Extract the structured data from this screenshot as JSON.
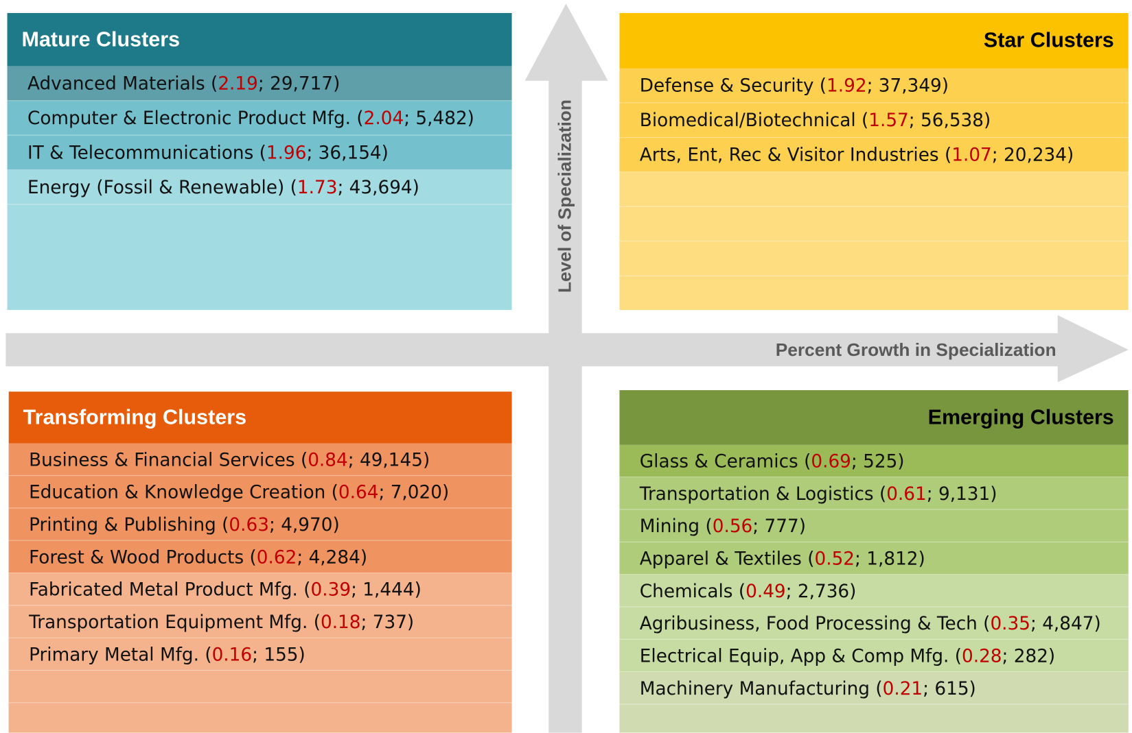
{
  "vertical_axis_label": "Level of Specialization",
  "horizontal_axis_label": "Percent Growth in Specialization",
  "mature": {
    "title": "Mature Clusters",
    "items": [
      {
        "before": "Advanced Materials (",
        "value": "2.19",
        "after": "; 29,717)"
      },
      {
        "before": "Computer & Electronic Product Mfg. (",
        "value": "2.04",
        "after": "; 5,482)"
      },
      {
        "before": "IT & Telecommunications (",
        "value": "1.96",
        "after": "; 36,154)"
      },
      {
        "before": "Energy (Fossil & Renewable) (",
        "value": "1.73",
        "after": "; 43,694)"
      }
    ]
  },
  "star": {
    "title": "Star Clusters",
    "items": [
      {
        "before": "Defense & Security (",
        "value": "1.92",
        "after": "; 37,349)"
      },
      {
        "before": "Biomedical/Biotechnical (",
        "value": "1.57",
        "after": "; 56,538)"
      },
      {
        "before": "Arts, Ent, Rec & Visitor Industries (",
        "value": "1.07",
        "after": "; 20,234)"
      }
    ]
  },
  "transforming": {
    "title": "Transforming Clusters",
    "items": [
      {
        "before": "Business & Financial Services (",
        "value": "0.84",
        "after": "; 49,145)"
      },
      {
        "before": "Education & Knowledge Creation (",
        "value": "0.64",
        "after": "; 7,020)"
      },
      {
        "before": "Printing & Publishing (",
        "value": "0.63",
        "after": "; 4,970)"
      },
      {
        "before": "Forest & Wood Products (",
        "value": "0.62",
        "after": "; 4,284)"
      },
      {
        "before": "Fabricated Metal Product Mfg. (",
        "value": "0.39",
        "after": "; 1,444)"
      },
      {
        "before": "Transportation Equipment Mfg. (",
        "value": "0.18",
        "after": "; 737)"
      },
      {
        "before": "Primary Metal Mfg. (",
        "value": "0.16",
        "after": "; 155)"
      }
    ]
  },
  "emerging": {
    "title": "Emerging Clusters",
    "items": [
      {
        "before": "Glass & Ceramics (",
        "value": "0.69",
        "after": "; 525)"
      },
      {
        "before": "Transportation & Logistics (",
        "value": "0.61",
        "after": "; 9,131)"
      },
      {
        "before": "Mining (",
        "value": "0.56",
        "after": "; 777)"
      },
      {
        "before": "Apparel & Textiles (",
        "value": "0.52",
        "after": "; 1,812)"
      },
      {
        "before": "Chemicals (",
        "value": "0.49",
        "after": "; 2,736)"
      },
      {
        "before": "Agribusiness, Food Processing & Tech (",
        "value": "0.35",
        "after": "; 4,847)"
      },
      {
        "before": "Electrical Equip, App & Comp Mfg. (",
        "value": "0.28",
        "after": "; 282)"
      },
      {
        "before": "Machinery Manufacturing (",
        "value": "0.21",
        "after": "; 615)"
      }
    ]
  }
}
